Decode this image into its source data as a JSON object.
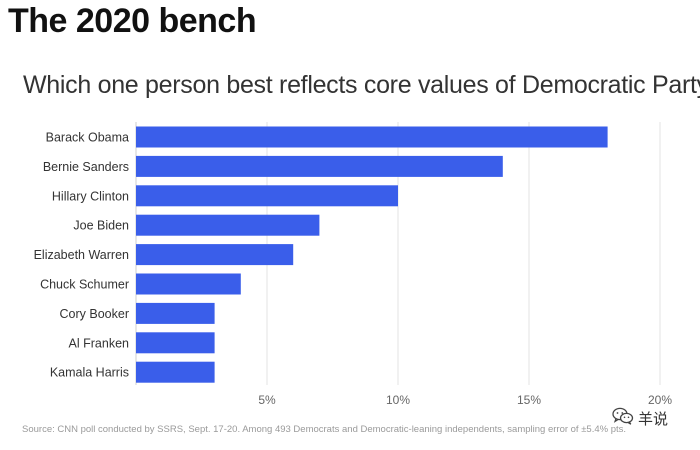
{
  "header": {
    "title": "The 2020 bench"
  },
  "chart_data": {
    "type": "bar",
    "orientation": "horizontal",
    "title": "Which one person best reflects core values of Democratic Party?",
    "categories": [
      "Barack Obama",
      "Bernie Sanders",
      "Hillary Clinton",
      "Joe Biden",
      "Elizabeth Warren",
      "Chuck Schumer",
      "Cory Booker",
      "Al Franken",
      "Kamala Harris"
    ],
    "values": [
      18,
      14,
      10,
      7,
      6,
      4,
      3,
      3,
      3
    ],
    "xlim": [
      0,
      20
    ],
    "xticks": [
      5,
      10,
      15,
      20
    ],
    "xtick_labels": [
      "5%",
      "10%",
      "15%",
      "20%"
    ],
    "xlabel": "",
    "ylabel": "",
    "grid": true,
    "bar_color": "#3a5eea"
  },
  "footer": {
    "source": "Source: CNN poll conducted by SSRS, Sept. 17-20. Among 493 Democrats and Democratic-leaning independents, sampling error of ±5.4% pts."
  },
  "watermark": {
    "text": "羊说",
    "icon": "wechat-icon"
  }
}
